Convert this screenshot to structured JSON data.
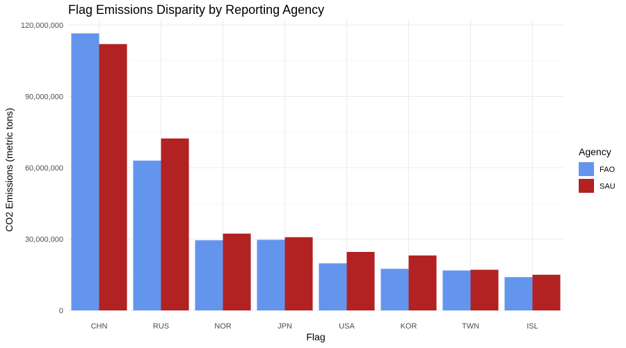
{
  "chart_data": {
    "type": "bar",
    "title": "Flag Emissions Disparity by Reporting Agency",
    "xlabel": "Flag",
    "ylabel": "CO2 Emissions (metric tons)",
    "categories": [
      "CHN",
      "RUS",
      "NOR",
      "JPN",
      "USA",
      "KOR",
      "TWN",
      "ISL"
    ],
    "series": [
      {
        "name": "FAO",
        "color": "#6495ED",
        "values": [
          116500000,
          63000000,
          29500000,
          29700000,
          19800000,
          17500000,
          16800000,
          14000000
        ]
      },
      {
        "name": "SAU",
        "color": "#B22222",
        "values": [
          112000000,
          72300000,
          32300000,
          30800000,
          24600000,
          23100000,
          17100000,
          15000000
        ]
      }
    ],
    "ylim": [
      0,
      120000000
    ],
    "yticks": [
      0,
      30000000,
      60000000,
      90000000,
      120000000
    ],
    "ytick_labels": [
      "0",
      "30,000,000",
      "60,000,000",
      "90,000,000",
      "120,000,000"
    ],
    "grid": true,
    "legend": {
      "title": "Agency",
      "position": "right"
    }
  }
}
